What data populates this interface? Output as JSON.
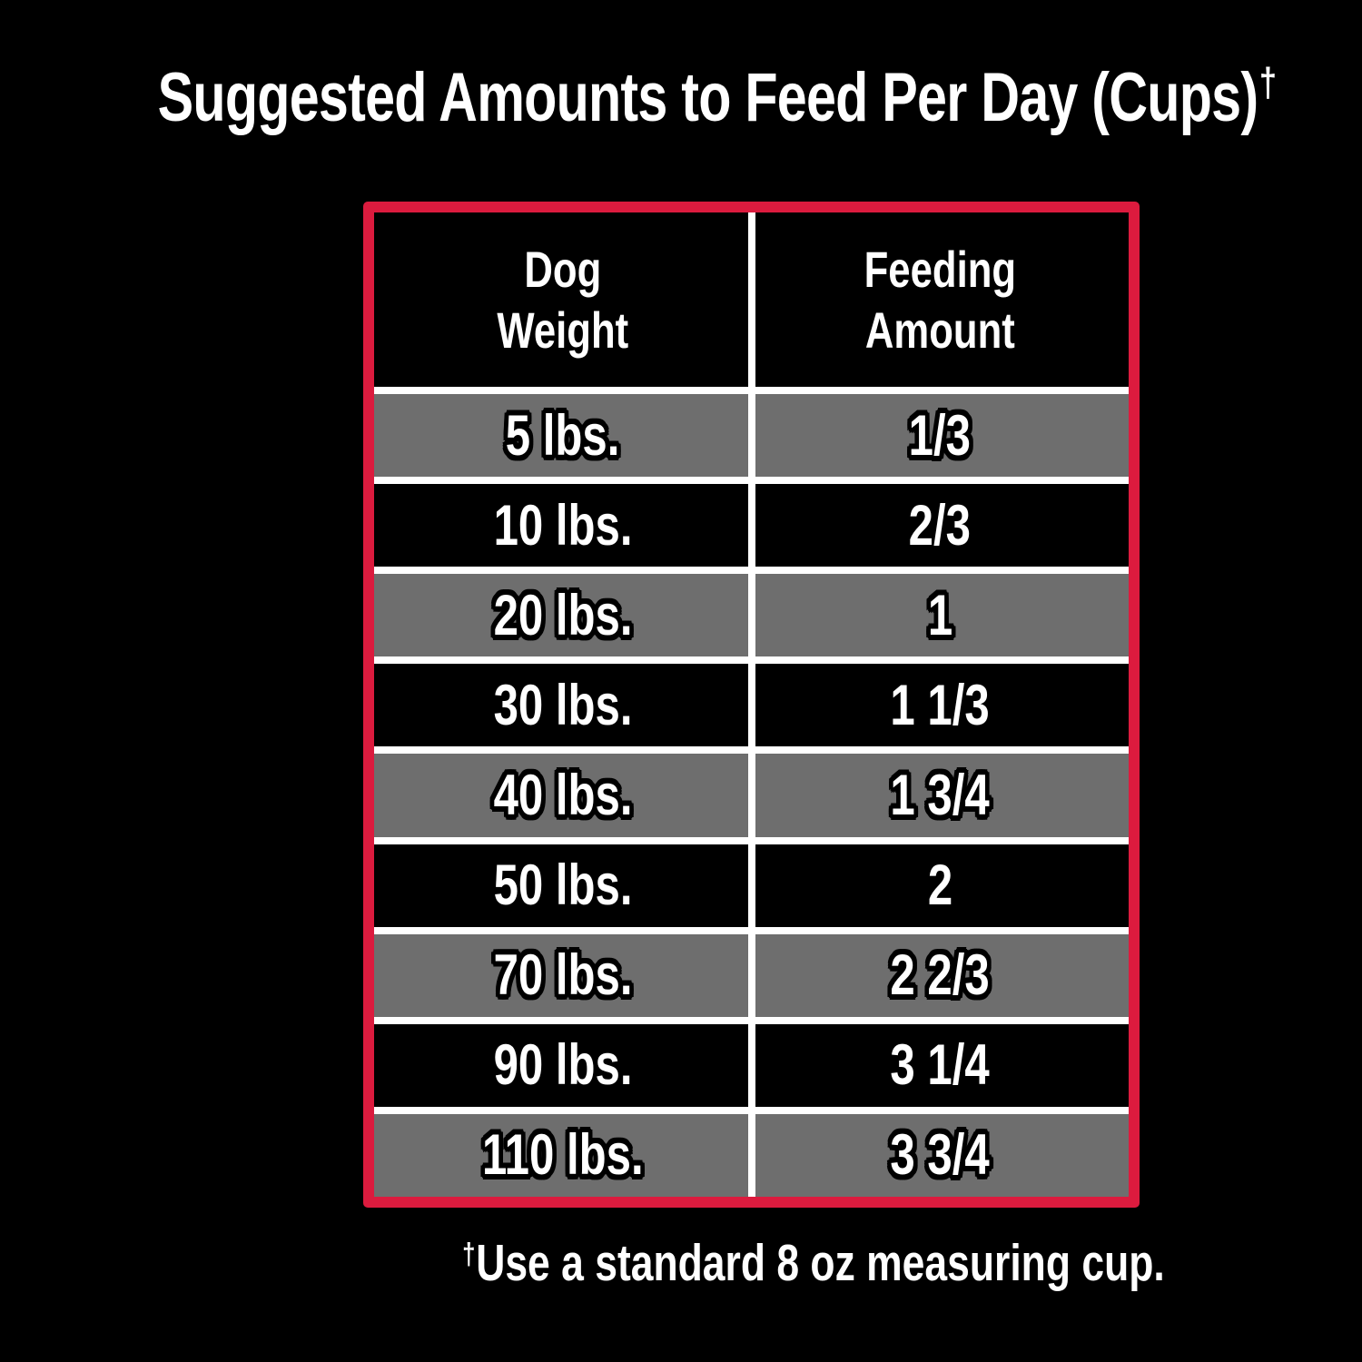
{
  "title": {
    "text": "Suggested Amounts to Feed Per Day (Cups)",
    "dagger": "†"
  },
  "table": {
    "header": [
      {
        "line1": "Dog",
        "line2": "Weight"
      },
      {
        "line1": "Feeding",
        "line2": "Amount"
      }
    ],
    "rows": [
      {
        "weight": "5 lbs.",
        "amount": "1/3"
      },
      {
        "weight": "10 lbs.",
        "amount": "2/3"
      },
      {
        "weight": "20 lbs.",
        "amount": "1"
      },
      {
        "weight": "30 lbs.",
        "amount": "1 1/3"
      },
      {
        "weight": "40 lbs.",
        "amount": "1 3/4"
      },
      {
        "weight": "50 lbs.",
        "amount": "2"
      },
      {
        "weight": "70 lbs.",
        "amount": "2 2/3"
      },
      {
        "weight": "90 lbs.",
        "amount": "3 1/4"
      },
      {
        "weight": "110 lbs.",
        "amount": "3 3/4"
      }
    ]
  },
  "footnote": {
    "dagger": "†",
    "text": "Use a standard 8 oz measuring cup."
  },
  "colors": {
    "background": "#000000",
    "border_red": "#dc1b3e",
    "row_gray": "#6e6e6e",
    "row_black": "#000000",
    "divider_white": "#ffffff",
    "text_white": "#ffffff",
    "outline_black": "#000000"
  },
  "chart_data": {
    "type": "table",
    "title": "Suggested Amounts to Feed Per Day (Cups)†",
    "columns": [
      "Dog Weight",
      "Feeding Amount"
    ],
    "rows": [
      [
        "5 lbs.",
        "1/3"
      ],
      [
        "10 lbs.",
        "2/3"
      ],
      [
        "20 lbs.",
        "1"
      ],
      [
        "30 lbs.",
        "1 1/3"
      ],
      [
        "40 lbs.",
        "1 3/4"
      ],
      [
        "50 lbs.",
        "2"
      ],
      [
        "70 lbs.",
        "2 2/3"
      ],
      [
        "90 lbs.",
        "3 1/4"
      ],
      [
        "110 lbs.",
        "3 3/4"
      ]
    ],
    "footnote": "†Use a standard 8 oz measuring cup.",
    "layout": {
      "row_striping": [
        "gray",
        "black"
      ],
      "border": "hand-drawn red frame",
      "background": "black"
    }
  }
}
